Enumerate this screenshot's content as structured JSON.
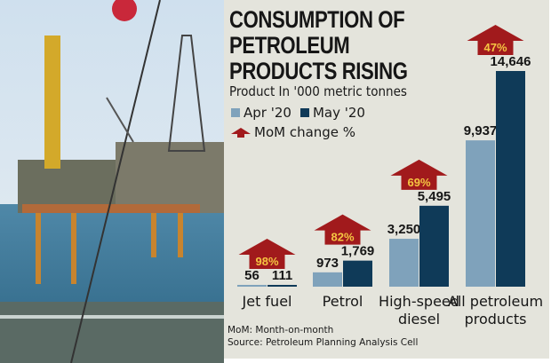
{
  "title": "CONSUMPTION OF PETROLEUM PRODUCTS RISING",
  "subtitle": "Product In '000 metric tonnes",
  "legend": {
    "apr": "Apr '20",
    "may": "May '20",
    "change": "MoM change %"
  },
  "footnote": "MoM: Month-on-month",
  "source": "Source: Petroleum Planning Analysis Cell",
  "colors": {
    "apr": "#7fa2bb",
    "may": "#0f3a58",
    "arrow": "#a11a1c",
    "arrow_text": "#f5c542",
    "background": "#e4e4dc"
  },
  "chart_data": {
    "type": "bar",
    "categories": [
      "Jet fuel",
      "Petrol",
      "High-speed diesel",
      "All petroleum products"
    ],
    "category_lines": [
      [
        "Jet fuel"
      ],
      [
        "Petrol"
      ],
      [
        "High-speed",
        "diesel"
      ],
      [
        "All petroleum",
        "products"
      ]
    ],
    "series": [
      {
        "name": "Apr '20",
        "values": [
          56,
          973,
          3250,
          9937
        ],
        "labels": [
          "56",
          "973",
          "3,250",
          "9,937"
        ]
      },
      {
        "name": "May '20",
        "values": [
          111,
          1769,
          5495,
          14646
        ],
        "labels": [
          "111",
          "1,769",
          "5,495",
          "14,646"
        ]
      }
    ],
    "mom_change_pct": [
      "98%",
      "82%",
      "69%",
      "47%"
    ],
    "ylim": [
      0,
      14646
    ],
    "grid": false
  }
}
